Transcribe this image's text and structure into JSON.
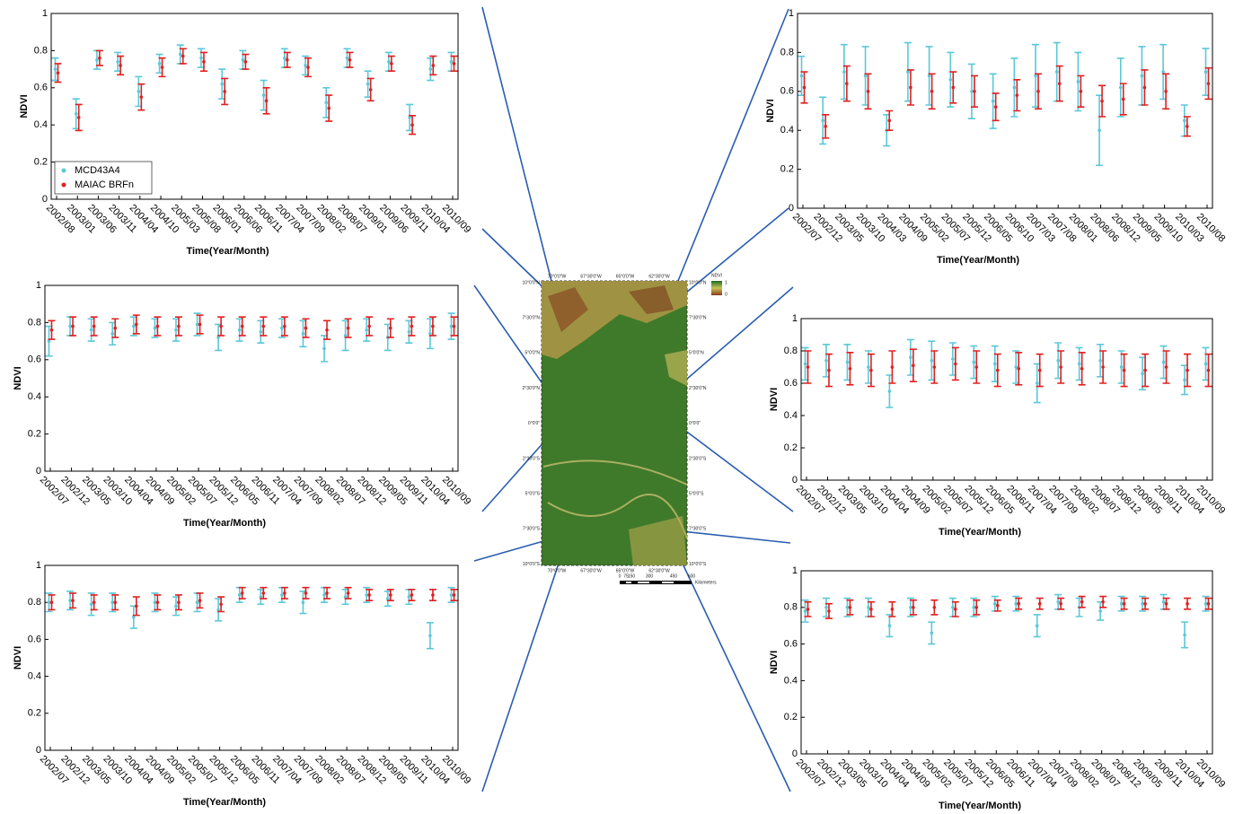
{
  "chart_data": [
    {
      "type": "errorbar",
      "y_label": "NDVI",
      "x_label": "Time(Year/Month)",
      "ylim": [
        0,
        1
      ],
      "yticks": [
        0,
        0.2,
        0.4,
        0.6,
        0.8,
        1
      ],
      "legend": "lower left",
      "categories": [
        "2002/08",
        "2003/01",
        "2003/06",
        "2003/11",
        "2004/04",
        "2004/10",
        "2005/03",
        "2005/08",
        "2006/01",
        "2006/06",
        "2006/11",
        "2007/04",
        "2007/09",
        "2008/02",
        "2008/07",
        "2009/01",
        "2009/06",
        "2009/11",
        "2010/04",
        "2010/09"
      ],
      "series": [
        {
          "name": "MCD43A4",
          "color": "#5bc8d8",
          "values": [
            0.7,
            0.46,
            0.75,
            0.74,
            0.58,
            0.73,
            0.78,
            0.76,
            0.62,
            0.75,
            0.56,
            0.76,
            0.72,
            0.52,
            0.76,
            0.62,
            0.74,
            0.44,
            0.7,
            0.74
          ],
          "errors": [
            0.06,
            0.08,
            0.05,
            0.05,
            0.08,
            0.05,
            0.05,
            0.05,
            0.08,
            0.05,
            0.08,
            0.05,
            0.05,
            0.08,
            0.05,
            0.07,
            0.05,
            0.07,
            0.06,
            0.05
          ]
        },
        {
          "name": "MAIAC BRFn",
          "color": "#e02020",
          "values": [
            0.68,
            0.44,
            0.76,
            0.72,
            0.55,
            0.71,
            0.77,
            0.74,
            0.58,
            0.74,
            0.53,
            0.75,
            0.71,
            0.49,
            0.75,
            0.59,
            0.73,
            0.4,
            0.72,
            0.73
          ],
          "errors": [
            0.05,
            0.07,
            0.04,
            0.05,
            0.07,
            0.05,
            0.04,
            0.05,
            0.07,
            0.04,
            0.07,
            0.04,
            0.05,
            0.07,
            0.04,
            0.06,
            0.04,
            0.05,
            0.05,
            0.04
          ]
        }
      ]
    },
    {
      "type": "errorbar",
      "y_label": "NDVI",
      "x_label": "Time(Year/Month)",
      "ylim": [
        0,
        1
      ],
      "yticks": [
        0,
        0.2,
        0.4,
        0.6,
        0.8,
        1
      ],
      "categories": [
        "2002/07",
        "2002/12",
        "2003/05",
        "2003/10",
        "2004/03",
        "2004/09",
        "2005/02",
        "2005/07",
        "2005/12",
        "2006/05",
        "2006/10",
        "2007/03",
        "2007/08",
        "2008/01",
        "2008/06",
        "2008/12",
        "2009/05",
        "2009/10",
        "2010/03",
        "2010/08"
      ],
      "series": [
        {
          "color": "#5bc8d8",
          "values": [
            0.68,
            0.45,
            0.7,
            0.68,
            0.4,
            0.7,
            0.68,
            0.66,
            0.6,
            0.55,
            0.62,
            0.68,
            0.7,
            0.65,
            0.4,
            0.62,
            0.68,
            0.7,
            0.45,
            0.7
          ],
          "errors": [
            0.1,
            0.12,
            0.14,
            0.15,
            0.08,
            0.15,
            0.15,
            0.14,
            0.14,
            0.14,
            0.15,
            0.16,
            0.15,
            0.15,
            0.18,
            0.15,
            0.15,
            0.14,
            0.08,
            0.12
          ]
        },
        {
          "color": "#e02020",
          "values": [
            0.62,
            0.42,
            0.64,
            0.6,
            0.45,
            0.62,
            0.6,
            0.62,
            0.6,
            0.52,
            0.58,
            0.6,
            0.64,
            0.6,
            0.55,
            0.56,
            0.62,
            0.6,
            0.42,
            0.64
          ],
          "errors": [
            0.08,
            0.06,
            0.09,
            0.09,
            0.05,
            0.09,
            0.09,
            0.08,
            0.08,
            0.07,
            0.08,
            0.09,
            0.09,
            0.08,
            0.08,
            0.08,
            0.09,
            0.09,
            0.05,
            0.08
          ]
        }
      ]
    },
    {
      "type": "errorbar",
      "y_label": "NDVI",
      "x_label": "Time(Year/Month)",
      "ylim": [
        0,
        1
      ],
      "yticks": [
        0,
        0.2,
        0.4,
        0.6,
        0.8,
        1
      ],
      "categories": [
        "2002/07",
        "2002/12",
        "2003/05",
        "2003/10",
        "2004/04",
        "2004/09",
        "2005/02",
        "2005/07",
        "2005/12",
        "2006/05",
        "2006/11",
        "2007/04",
        "2007/09",
        "2008/02",
        "2008/07",
        "2008/12",
        "2009/05",
        "2009/11",
        "2010/04",
        "2010/09"
      ],
      "series": [
        {
          "color": "#5bc8d8",
          "values": [
            0.7,
            0.78,
            0.76,
            0.74,
            0.78,
            0.77,
            0.76,
            0.79,
            0.72,
            0.76,
            0.75,
            0.77,
            0.74,
            0.66,
            0.73,
            0.76,
            0.72,
            0.75,
            0.74,
            0.78
          ],
          "errors": [
            0.08,
            0.05,
            0.06,
            0.06,
            0.05,
            0.05,
            0.06,
            0.06,
            0.07,
            0.06,
            0.06,
            0.05,
            0.07,
            0.07,
            0.08,
            0.06,
            0.07,
            0.06,
            0.08,
            0.07
          ]
        },
        {
          "color": "#e02020",
          "values": [
            0.76,
            0.78,
            0.78,
            0.77,
            0.79,
            0.78,
            0.78,
            0.79,
            0.78,
            0.78,
            0.78,
            0.78,
            0.77,
            0.76,
            0.77,
            0.78,
            0.77,
            0.78,
            0.78,
            0.78
          ],
          "errors": [
            0.05,
            0.05,
            0.05,
            0.05,
            0.05,
            0.05,
            0.05,
            0.05,
            0.05,
            0.05,
            0.05,
            0.05,
            0.05,
            0.05,
            0.05,
            0.05,
            0.05,
            0.05,
            0.05,
            0.05
          ]
        }
      ]
    },
    {
      "type": "errorbar",
      "y_label": "NDVI",
      "x_label": "Time(Year/Month)",
      "ylim": [
        0,
        1
      ],
      "yticks": [
        0,
        0.2,
        0.4,
        0.6,
        0.8,
        1
      ],
      "categories": [
        "2002/07",
        "2002/12",
        "2003/05",
        "2003/10",
        "2004/04",
        "2004/09",
        "2005/02",
        "2005/07",
        "2005/12",
        "2006/05",
        "2006/11",
        "2007/04",
        "2007/09",
        "2008/02",
        "2008/07",
        "2008/12",
        "2009/05",
        "2009/11",
        "2010/04",
        "2010/09"
      ],
      "series": [
        {
          "color": "#5bc8d8",
          "values": [
            0.72,
            0.74,
            0.73,
            0.7,
            0.55,
            0.76,
            0.74,
            0.75,
            0.73,
            0.72,
            0.7,
            0.6,
            0.74,
            0.72,
            0.74,
            0.7,
            0.66,
            0.73,
            0.62,
            0.72
          ],
          "errors": [
            0.1,
            0.1,
            0.11,
            0.1,
            0.1,
            0.11,
            0.12,
            0.1,
            0.1,
            0.11,
            0.1,
            0.12,
            0.11,
            0.1,
            0.1,
            0.1,
            0.1,
            0.1,
            0.09,
            0.1
          ]
        },
        {
          "color": "#e02020",
          "values": [
            0.7,
            0.68,
            0.69,
            0.68,
            0.7,
            0.71,
            0.7,
            0.72,
            0.7,
            0.68,
            0.69,
            0.68,
            0.7,
            0.69,
            0.7,
            0.68,
            0.68,
            0.7,
            0.68,
            0.68
          ],
          "errors": [
            0.1,
            0.1,
            0.1,
            0.1,
            0.1,
            0.1,
            0.1,
            0.1,
            0.1,
            0.1,
            0.1,
            0.1,
            0.1,
            0.1,
            0.1,
            0.1,
            0.1,
            0.1,
            0.1,
            0.1
          ]
        }
      ]
    },
    {
      "type": "errorbar",
      "y_label": "NDVI",
      "x_label": "Time(Year/Month)",
      "ylim": [
        0,
        1
      ],
      "yticks": [
        0,
        0.2,
        0.4,
        0.6,
        0.8,
        1
      ],
      "categories": [
        "2002/07",
        "2002/12",
        "2003/05",
        "2003/10",
        "2004/04",
        "2004/09",
        "2005/02",
        "2005/07",
        "2005/12",
        "2006/05",
        "2006/11",
        "2007/04",
        "2007/09",
        "2008/02",
        "2008/07",
        "2008/12",
        "2009/05",
        "2009/11",
        "2010/04",
        "2010/09"
      ],
      "series": [
        {
          "color": "#5bc8d8",
          "values": [
            0.8,
            0.81,
            0.79,
            0.8,
            0.72,
            0.8,
            0.78,
            0.8,
            0.76,
            0.84,
            0.83,
            0.84,
            0.8,
            0.84,
            0.83,
            0.84,
            0.82,
            0.83,
            0.62,
            0.84
          ],
          "errors": [
            0.05,
            0.05,
            0.06,
            0.05,
            0.06,
            0.05,
            0.05,
            0.05,
            0.06,
            0.04,
            0.04,
            0.04,
            0.06,
            0.04,
            0.04,
            0.04,
            0.04,
            0.04,
            0.07,
            0.04
          ]
        },
        {
          "color": "#e02020",
          "values": [
            0.8,
            0.81,
            0.8,
            0.8,
            0.78,
            0.8,
            0.8,
            0.81,
            0.79,
            0.85,
            0.85,
            0.85,
            0.85,
            0.85,
            0.85,
            0.84,
            0.84,
            0.84,
            0.84,
            0.84
          ],
          "errors": [
            0.04,
            0.04,
            0.04,
            0.04,
            0.05,
            0.04,
            0.04,
            0.04,
            0.04,
            0.03,
            0.03,
            0.03,
            0.03,
            0.03,
            0.03,
            0.03,
            0.03,
            0.03,
            0.03,
            0.03
          ]
        }
      ]
    },
    {
      "type": "errorbar",
      "y_label": "NDVI",
      "x_label": "Time(Year/Month)",
      "ylim": [
        0,
        1
      ],
      "yticks": [
        0,
        0.2,
        0.4,
        0.6,
        0.8,
        1
      ],
      "categories": [
        "2002/07",
        "2002/12",
        "2003/05",
        "2003/10",
        "2004/04",
        "2004/09",
        "2005/02",
        "2005/07",
        "2005/12",
        "2006/05",
        "2006/11",
        "2007/04",
        "2007/09",
        "2008/02",
        "2008/07",
        "2008/12",
        "2009/05",
        "2009/11",
        "2010/04",
        "2010/09"
      ],
      "series": [
        {
          "color": "#5bc8d8",
          "values": [
            0.78,
            0.8,
            0.8,
            0.8,
            0.7,
            0.8,
            0.66,
            0.8,
            0.8,
            0.82,
            0.82,
            0.7,
            0.83,
            0.8,
            0.78,
            0.82,
            0.82,
            0.83,
            0.65,
            0.82
          ],
          "errors": [
            0.06,
            0.05,
            0.05,
            0.05,
            0.06,
            0.05,
            0.06,
            0.05,
            0.05,
            0.04,
            0.04,
            0.06,
            0.04,
            0.05,
            0.05,
            0.04,
            0.04,
            0.04,
            0.07,
            0.04
          ]
        },
        {
          "color": "#e02020",
          "values": [
            0.79,
            0.78,
            0.8,
            0.79,
            0.79,
            0.8,
            0.8,
            0.79,
            0.8,
            0.81,
            0.82,
            0.82,
            0.82,
            0.83,
            0.83,
            0.82,
            0.82,
            0.82,
            0.82,
            0.82
          ],
          "errors": [
            0.04,
            0.04,
            0.04,
            0.04,
            0.04,
            0.04,
            0.04,
            0.04,
            0.04,
            0.03,
            0.03,
            0.03,
            0.03,
            0.03,
            0.03,
            0.03,
            0.03,
            0.03,
            0.03,
            0.03
          ]
        }
      ]
    }
  ],
  "map": {
    "lon_labels": [
      "70°0'0\"W",
      "67°30'0\"W",
      "65°0'0\"W",
      "62°30'0\"W"
    ],
    "lat_labels": [
      "10°0'0\"N",
      "7°30'0\"N",
      "5°0'0\"N",
      "2°30'0\"N",
      "0°0'0\"",
      "2°30'0\"S",
      "5°0'0\"S",
      "7°30'0\"S",
      "10°0'0\"S"
    ],
    "legend_title": "NDVI",
    "legend_max": 1,
    "legend_min": 0,
    "scale_labels": [
      0,
      75,
      150,
      300,
      450,
      600
    ],
    "scale_unit": "Kilometers"
  }
}
